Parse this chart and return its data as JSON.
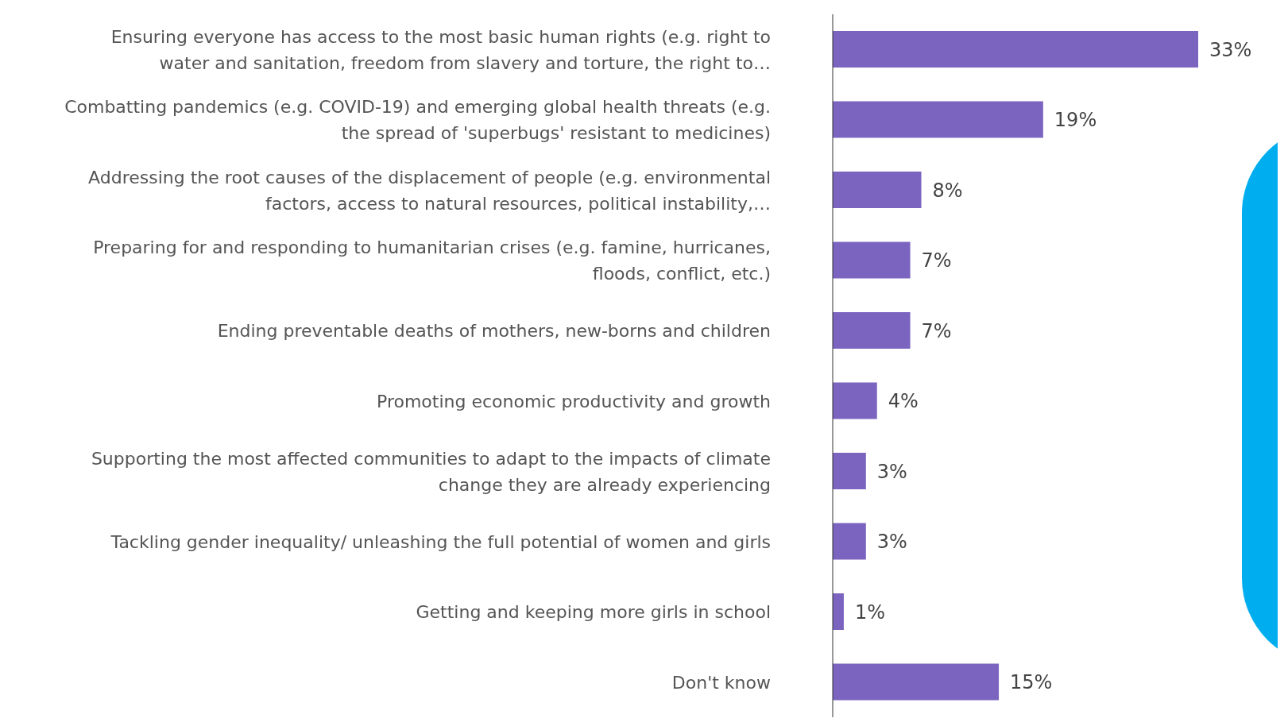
{
  "chart_data": {
    "type": "bar",
    "orientation": "horizontal",
    "categories": [
      "Ensuring everyone has access to the most basic human rights (e.g. right to water and sanitation, freedom from slavery and torture, the right to…",
      "Combatting pandemics (e.g. COVID-19) and emerging global health threats (e.g. the spread of 'superbugs' resistant to medicines)",
      "Addressing the root causes of the displacement of people (e.g. environmental factors, access to natural resources, political instability,…",
      "Preparing for and responding to humanitarian crises (e.g. famine, hurricanes, floods, conflict, etc.)",
      "Ending preventable deaths of mothers, new-borns and children",
      "Promoting economic productivity and growth",
      "Supporting the most affected communities to adapt to the impacts of climate change they are already experiencing",
      "Tackling gender inequality/ unleashing the full potential of women and girls",
      "Getting and keeping more girls in school",
      "Don't know"
    ],
    "values": [
      33,
      19,
      8,
      7,
      7,
      4,
      3,
      3,
      1,
      15
    ],
    "value_labels": [
      "33%",
      "19%",
      "8%",
      "7%",
      "7%",
      "4%",
      "3%",
      "3%",
      "1%",
      "15%"
    ],
    "color": "#7b64c0"
  }
}
